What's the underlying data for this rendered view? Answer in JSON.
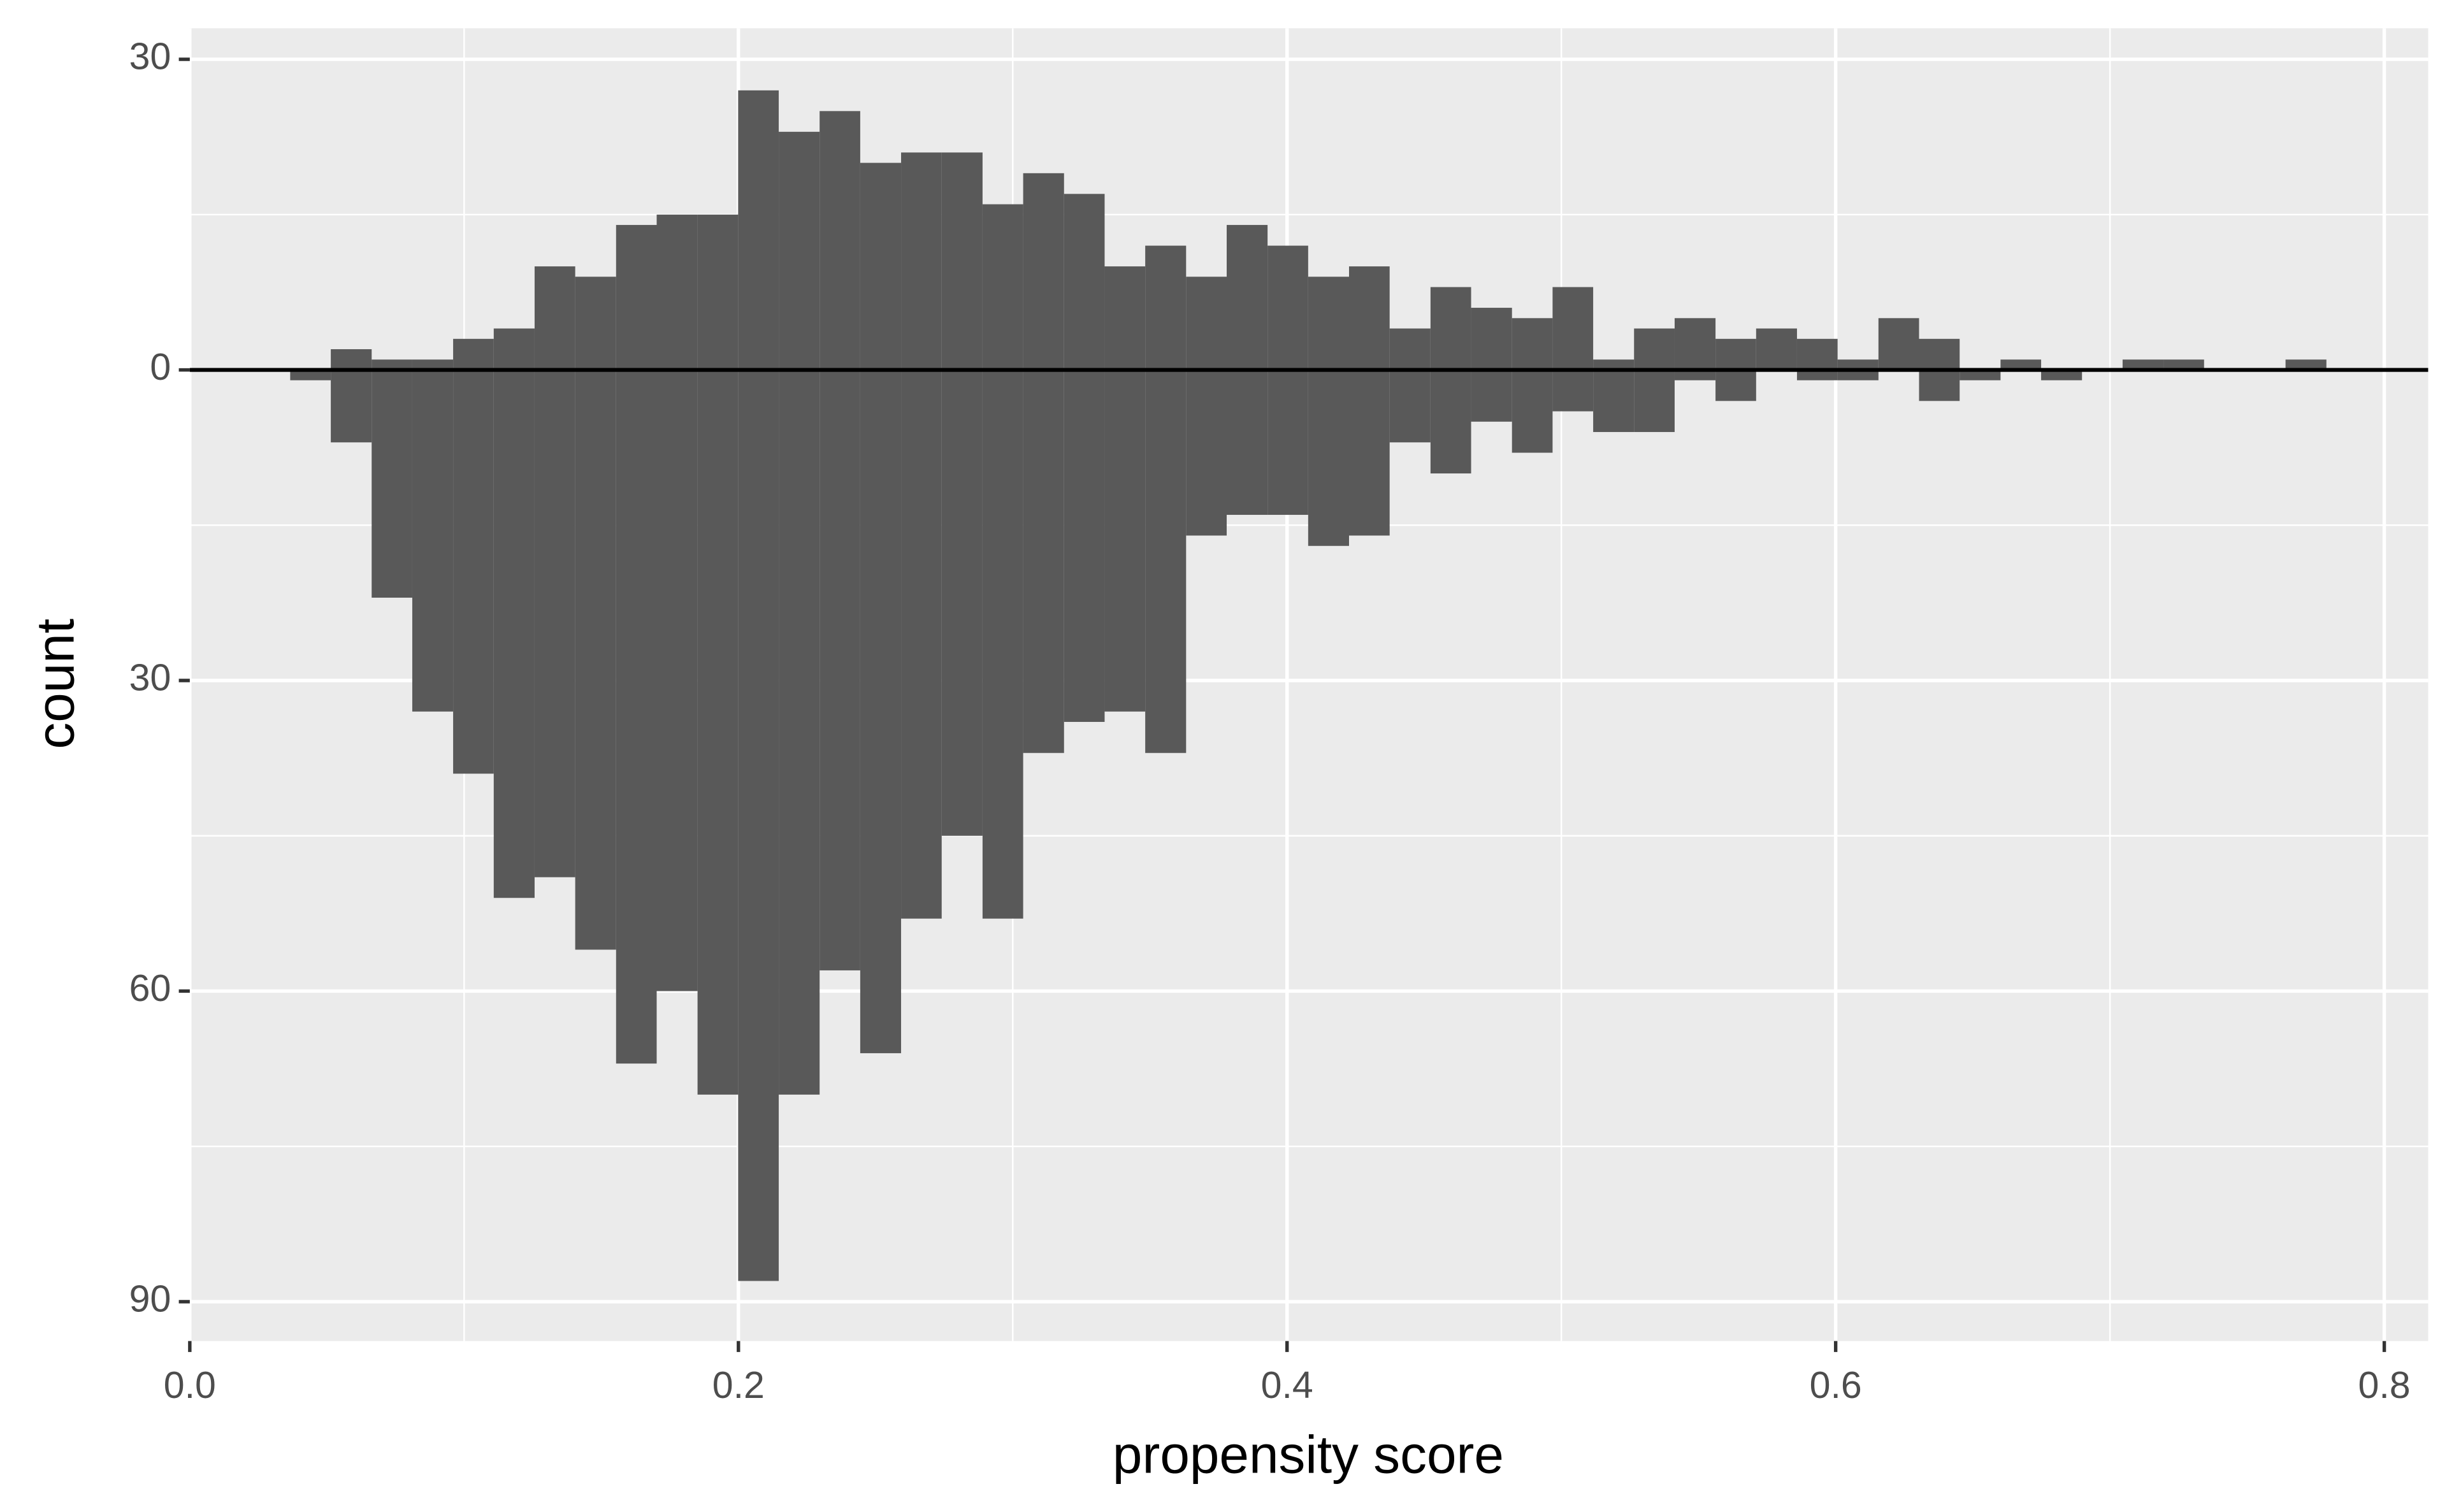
{
  "chart_data": {
    "type": "histogram",
    "x_label": "propensity score",
    "y_label": "count",
    "bins": [
      0.0366,
      0.0514,
      0.0663,
      0.0811,
      0.096,
      0.1108,
      0.1257,
      0.1405,
      0.1554,
      0.1702,
      0.1851,
      0.1999,
      0.2147,
      0.2296,
      0.2444,
      0.2593,
      0.2741,
      0.289,
      0.3038,
      0.3187,
      0.3335,
      0.3483,
      0.3632,
      0.378,
      0.3929,
      0.4077,
      0.4226,
      0.4374,
      0.4523,
      0.4671,
      0.482,
      0.4968,
      0.5116,
      0.5265,
      0.5413,
      0.5562,
      0.571,
      0.5859,
      0.6007,
      0.6156,
      0.6304,
      0.6452,
      0.6601,
      0.6749,
      0.6898,
      0.7046,
      0.7195,
      0.7343,
      0.7492,
      0.764,
      0.7789
    ],
    "series": [
      {
        "color": "#595959",
        "values": [
          0,
          2,
          1,
          1,
          3,
          4,
          10,
          9,
          14,
          15,
          15,
          27,
          23,
          25,
          20,
          21,
          21,
          16,
          19,
          17,
          10,
          12,
          9,
          14,
          12,
          9,
          10,
          4,
          8,
          6,
          5,
          8,
          1,
          4,
          5,
          3,
          4,
          3,
          1,
          5,
          3,
          0,
          1,
          0,
          0,
          1,
          1,
          0,
          0,
          1
        ]
      },
      {
        "color": "#595959",
        "values": [
          -1,
          -7,
          -22,
          -33,
          -39,
          -51,
          -49,
          -56,
          -67,
          -60,
          -70,
          -88,
          -70,
          -58,
          -66,
          -53,
          -45,
          -53,
          -37,
          -34,
          -33,
          -37,
          -16,
          -14,
          -14,
          -17,
          -16,
          -7,
          -10,
          -5,
          -8,
          -4,
          -6,
          -6,
          -1,
          -3,
          0,
          -1,
          -1,
          0,
          -3,
          -1,
          0,
          -1,
          0,
          0,
          0,
          0,
          0,
          0
        ]
      }
    ],
    "hline": 0,
    "xlim": [
      0,
      0.816
    ],
    "ylim": [
      -93.8,
      33
    ],
    "xticks": [
      {
        "value": 0,
        "label": "0.0"
      },
      0.2,
      0.4,
      0.6,
      0.8
    ],
    "yticks": [
      30,
      0,
      {
        "value": -30,
        "label": "30"
      },
      {
        "value": -60,
        "label": "60"
      },
      {
        "value": -90,
        "label": "90"
      }
    ],
    "grid": true,
    "panel_color": "#ebebeb"
  }
}
